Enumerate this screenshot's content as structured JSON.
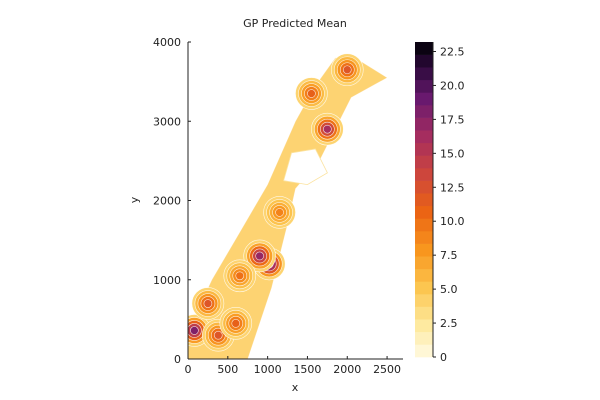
{
  "chart_data": {
    "type": "heatmap",
    "title": "GP Predicted Mean",
    "xlabel": "x",
    "ylabel": "y",
    "xlim": [
      0,
      2700
    ],
    "ylim": [
      0,
      4000
    ],
    "x_ticks": [
      0,
      500,
      1000,
      1500,
      2000,
      2500
    ],
    "x_tick_labels": [
      "0",
      "500",
      "1000",
      "1500",
      "2000",
      "2500"
    ],
    "y_ticks": [
      0,
      1000,
      2000,
      3000,
      4000
    ],
    "y_tick_labels": [
      "0",
      "1000",
      "2000",
      "3000",
      "4000"
    ],
    "grid": false,
    "colorbar": {
      "min": 0,
      "max": 23.2,
      "ticks": [
        0,
        2.5,
        5.0,
        7.5,
        10.0,
        12.5,
        15.0,
        17.5,
        20.0,
        22.5
      ],
      "tick_labels": [
        "0",
        "2.5",
        "5.0",
        "7.5",
        "10.0",
        "12.5",
        "15.0",
        "17.5",
        "20.0",
        "22.5"
      ],
      "colormap": "inferno",
      "levels": 25
    },
    "region": {
      "outline": [
        [
          0,
          0
        ],
        [
          150,
          0
        ],
        [
          750,
          0
        ],
        [
          1050,
          900
        ],
        [
          1250,
          1700
        ],
        [
          1350,
          2150
        ],
        [
          1650,
          2500
        ],
        [
          1850,
          2900
        ],
        [
          2050,
          3300
        ],
        [
          2500,
          3550
        ],
        [
          2100,
          3800
        ],
        [
          1850,
          3800
        ],
        [
          1600,
          3450
        ],
        [
          1350,
          3000
        ],
        [
          1000,
          2200
        ],
        [
          650,
          1600
        ],
        [
          300,
          1000
        ],
        [
          0,
          350
        ]
      ],
      "hole": [
        [
          1200,
          2250
        ],
        [
          1500,
          2200
        ],
        [
          1750,
          2350
        ],
        [
          1600,
          2650
        ],
        [
          1300,
          2600
        ]
      ]
    },
    "hotspots": [
      {
        "x": 80,
        "y": 360,
        "value": 18
      },
      {
        "x": 1020,
        "y": 1200,
        "value": 20
      },
      {
        "x": 900,
        "y": 1300,
        "value": 17
      },
      {
        "x": 1750,
        "y": 2900,
        "value": 16
      },
      {
        "x": 380,
        "y": 300,
        "value": 12
      },
      {
        "x": 250,
        "y": 700,
        "value": 12
      },
      {
        "x": 2000,
        "y": 3650,
        "value": 12
      },
      {
        "x": 1550,
        "y": 3350,
        "value": 11
      },
      {
        "x": 650,
        "y": 1050,
        "value": 10
      },
      {
        "x": 1150,
        "y": 1850,
        "value": 9
      },
      {
        "x": 600,
        "y": 450,
        "value": 11
      }
    ]
  }
}
